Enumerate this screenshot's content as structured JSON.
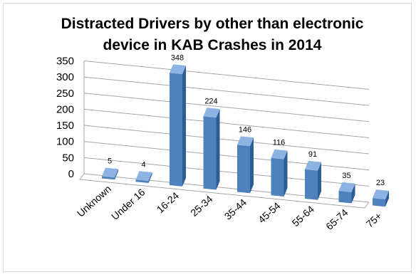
{
  "chart_data": {
    "type": "bar",
    "title_lines": [
      "Distracted Drivers by other than electronic",
      "device in KAB Crashes in 2014"
    ],
    "categories": [
      "Unknown",
      "Under 16",
      "16-24",
      "25-34",
      "35-44",
      "45-54",
      "55-64",
      "65-74",
      "75+"
    ],
    "values": [
      5,
      4,
      348,
      224,
      146,
      116,
      91,
      35,
      23
    ],
    "y_ticks": [
      0,
      50,
      100,
      150,
      200,
      250,
      300,
      350
    ],
    "ylim": [
      0,
      350
    ],
    "grid": true,
    "legend": "none",
    "style_3d": true,
    "colors": {
      "front": "#4f81bd",
      "side": "#2e5c94",
      "top": "#8db3e2",
      "grid": "#a6a6a6"
    }
  }
}
